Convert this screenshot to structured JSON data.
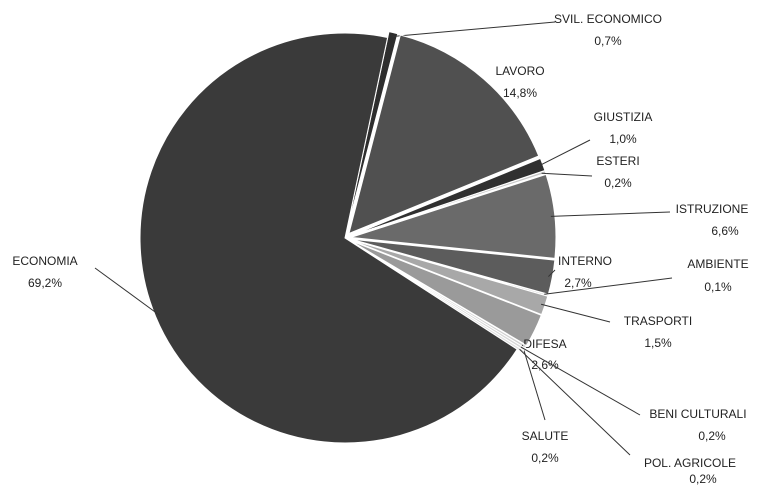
{
  "chart_data": {
    "type": "pie",
    "categories": [
      "SVIL. ECONOMICO",
      "LAVORO",
      "GIUSTIZIA",
      "ESTERI",
      "ISTRUZIONE",
      "INTERNO",
      "AMBIENTE",
      "TRASPORTI",
      "DIFESA",
      "SALUTE",
      "BENI CULTURALI",
      "POL. AGRICOLE",
      "ECONOMIA"
    ],
    "values": [
      0.7,
      14.8,
      1.0,
      0.2,
      6.6,
      2.7,
      0.1,
      1.5,
      2.6,
      0.2,
      0.2,
      0.2,
      69.2
    ],
    "value_labels": [
      "0,7%",
      "14,8%",
      "1,0%",
      "0,2%",
      "6,6%",
      "2,7%",
      "0,1%",
      "1,5%",
      "2,6%",
      "0,2%",
      "0,2%",
      "0,2%",
      "69,2%"
    ],
    "colors": [
      "#2e2e2e",
      "#505050",
      "#303030",
      "#c8c8c8",
      "#6a6a6a",
      "#5c5c5c",
      "#aaaaaa",
      "#a8a8a8",
      "#9a9a9a",
      "#d0d0d0",
      "#d8d8d8",
      "#e0e0e0",
      "#3a3a3a"
    ]
  }
}
